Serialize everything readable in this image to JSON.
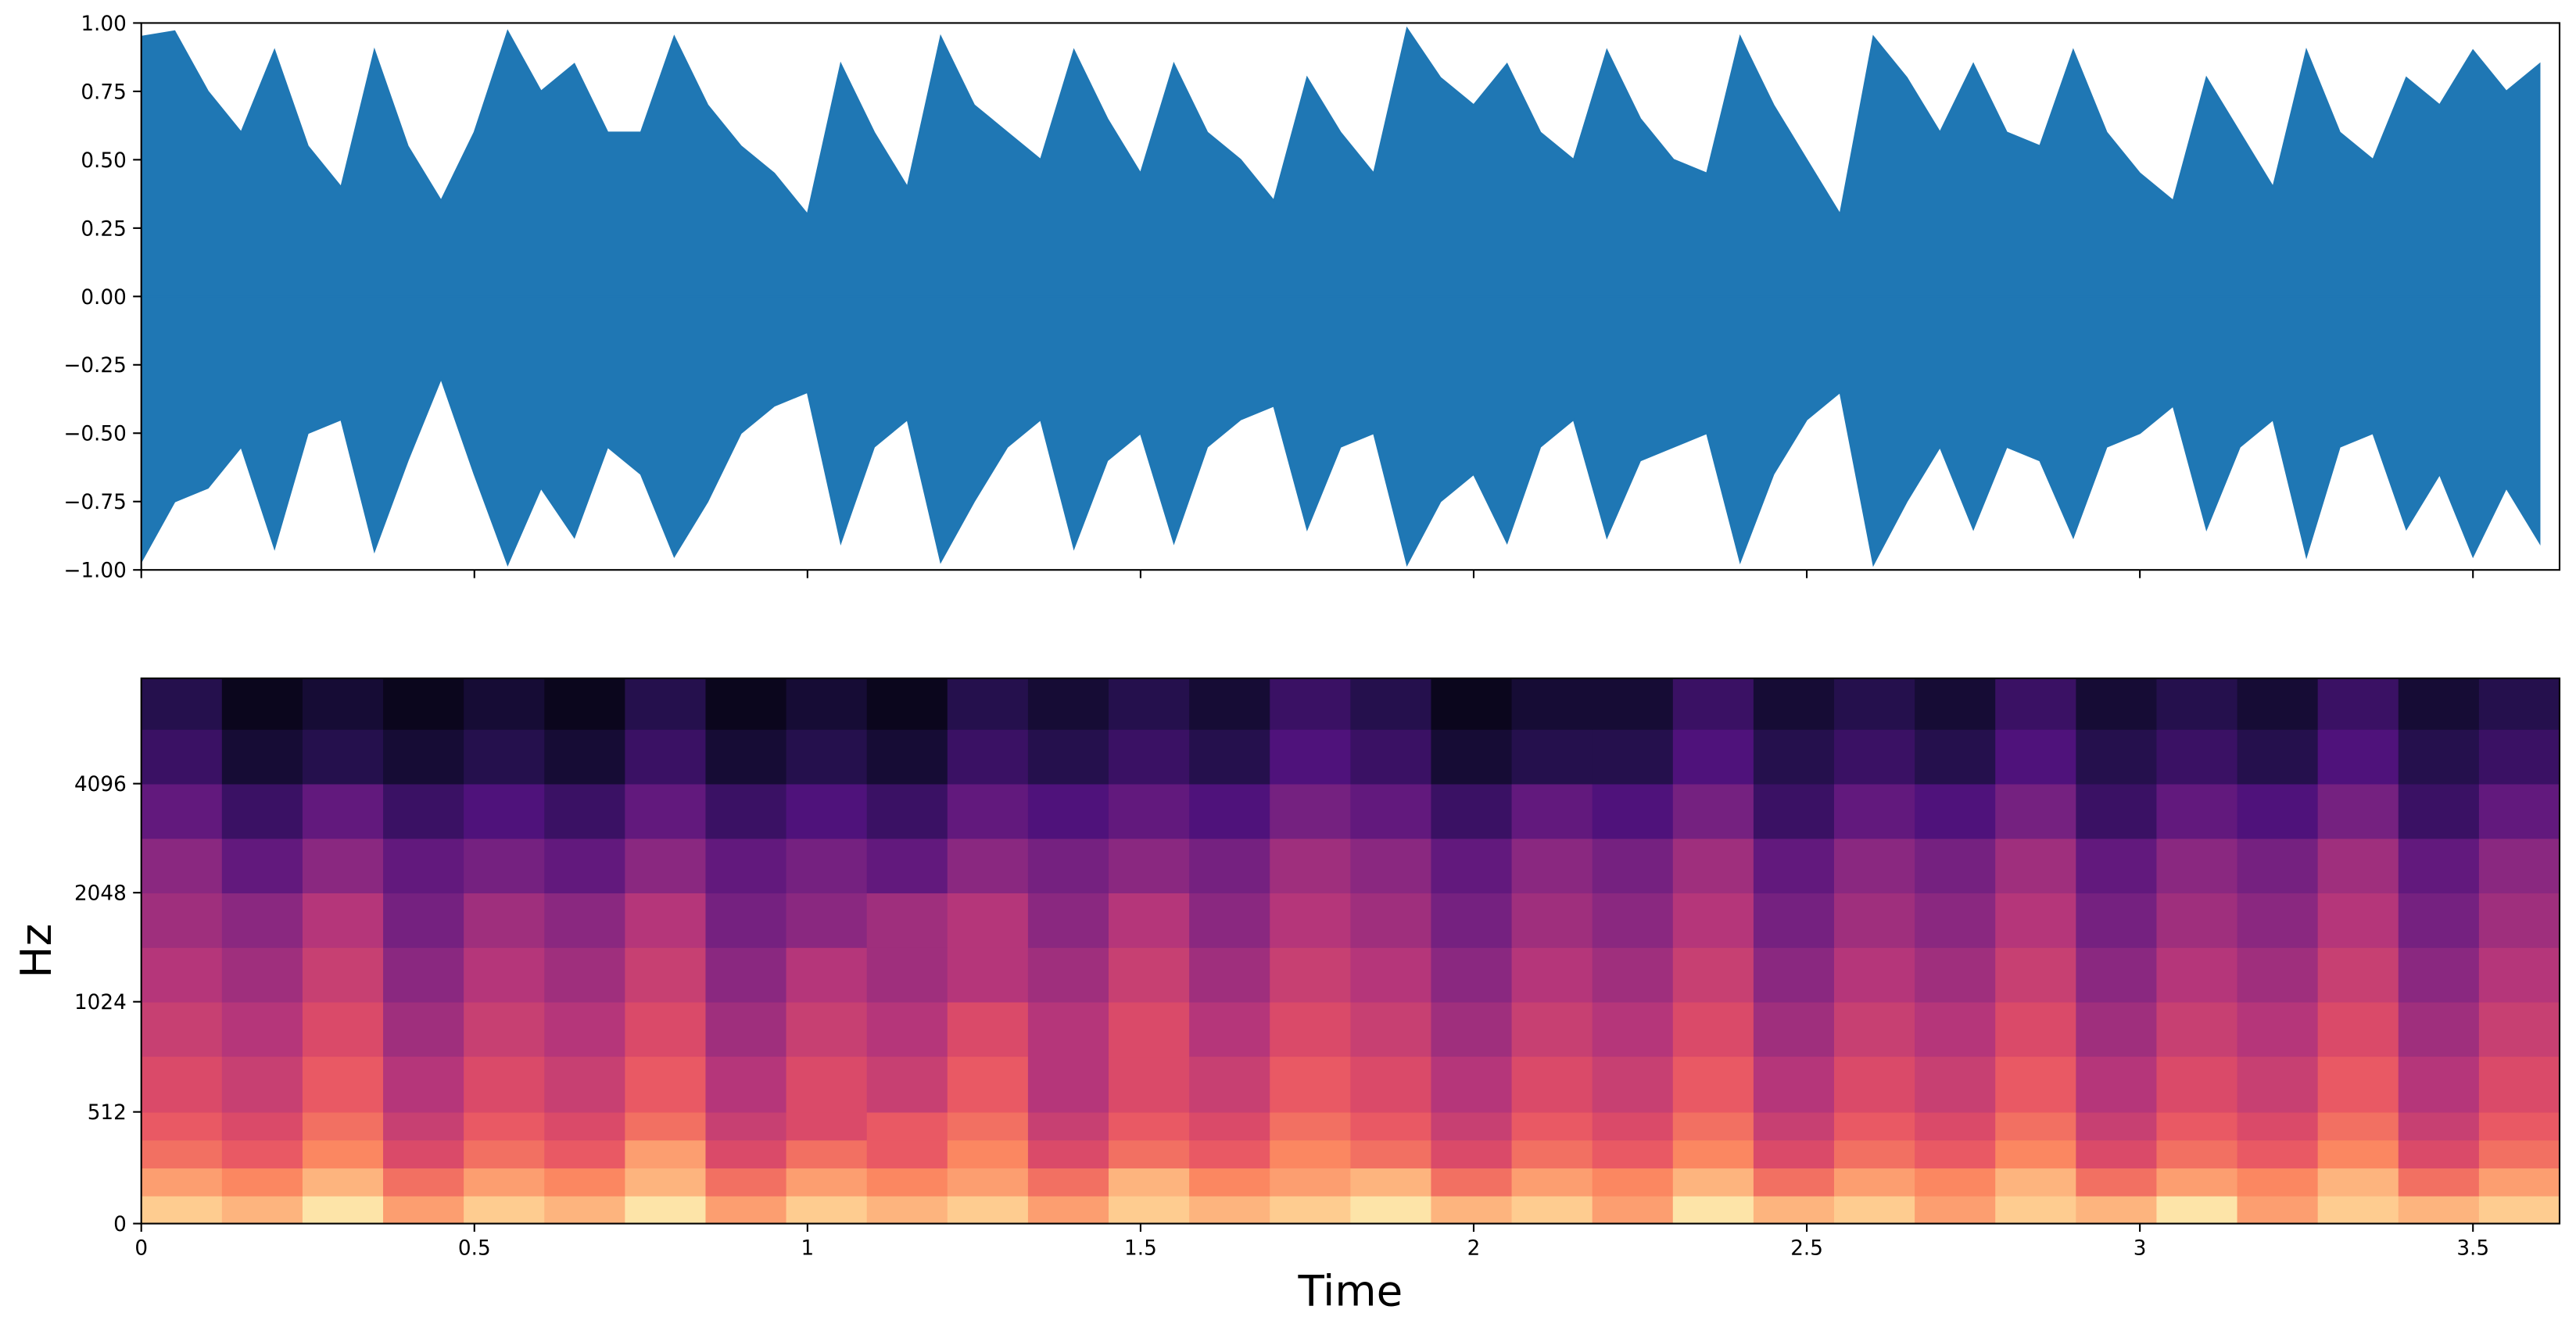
{
  "chart_data": [
    {
      "type": "area",
      "color": "#1f77b4",
      "x": [
        0,
        0.05,
        0.1,
        0.15,
        0.2,
        0.25,
        0.3,
        0.35,
        0.4,
        0.45,
        0.5,
        0.55,
        0.6,
        0.65,
        0.7,
        0.75,
        0.8,
        0.85,
        0.9,
        0.95,
        1.0,
        1.05,
        1.1,
        1.15,
        1.2,
        1.25,
        1.3,
        1.35,
        1.4,
        1.45,
        1.5,
        1.55,
        1.6,
        1.65,
        1.7,
        1.75,
        1.8,
        1.85,
        1.9,
        1.95,
        2.0,
        2.05,
        2.1,
        2.15,
        2.2,
        2.25,
        2.3,
        2.35,
        2.4,
        2.45,
        2.5,
        2.55,
        2.6,
        2.65,
        2.7,
        2.75,
        2.8,
        2.85,
        2.9,
        2.95,
        3.0,
        3.05,
        3.1,
        3.15,
        3.2,
        3.25,
        3.3,
        3.35,
        3.4,
        3.45,
        3.5,
        3.55,
        3.6
      ],
      "upper": [
        0.95,
        0.97,
        0.75,
        0.6,
        0.9,
        0.55,
        0.4,
        0.9,
        0.55,
        0.35,
        0.6,
        0.97,
        0.75,
        0.85,
        0.6,
        0.6,
        0.95,
        0.7,
        0.55,
        0.45,
        0.3,
        0.85,
        0.6,
        0.4,
        0.95,
        0.7,
        0.6,
        0.5,
        0.9,
        0.65,
        0.45,
        0.85,
        0.6,
        0.5,
        0.35,
        0.8,
        0.6,
        0.45,
        0.98,
        0.8,
        0.7,
        0.85,
        0.6,
        0.5,
        0.9,
        0.65,
        0.5,
        0.45,
        0.95,
        0.7,
        0.5,
        0.3,
        0.95,
        0.8,
        0.6,
        0.85,
        0.6,
        0.55,
        0.9,
        0.6,
        0.45,
        0.35,
        0.8,
        0.6,
        0.4,
        0.9,
        0.6,
        0.5,
        0.8,
        0.7,
        0.9,
        0.75,
        0.85
      ],
      "lower": [
        -0.97,
        -0.75,
        -0.7,
        -0.55,
        -0.92,
        -0.5,
        -0.45,
        -0.93,
        -0.6,
        -0.3,
        -0.65,
        -0.98,
        -0.7,
        -0.88,
        -0.55,
        -0.65,
        -0.95,
        -0.75,
        -0.5,
        -0.4,
        -0.35,
        -0.9,
        -0.55,
        -0.45,
        -0.97,
        -0.75,
        -0.55,
        -0.45,
        -0.92,
        -0.6,
        -0.5,
        -0.9,
        -0.55,
        -0.45,
        -0.4,
        -0.85,
        -0.55,
        -0.5,
        -0.98,
        -0.75,
        -0.65,
        -0.9,
        -0.55,
        -0.45,
        -0.88,
        -0.6,
        -0.55,
        -0.5,
        -0.97,
        -0.65,
        -0.45,
        -0.35,
        -0.98,
        -0.75,
        -0.55,
        -0.85,
        -0.55,
        -0.6,
        -0.88,
        -0.55,
        -0.5,
        -0.4,
        -0.85,
        -0.55,
        -0.45,
        -0.95,
        -0.55,
        -0.5,
        -0.85,
        -0.65,
        -0.95,
        -0.7,
        -0.9
      ],
      "xlim": [
        0,
        3.63
      ],
      "ylim": [
        -1,
        1
      ],
      "xticks": [
        0,
        0.5,
        1,
        1.5,
        2,
        2.5,
        3,
        3.5
      ],
      "xticklabels": false,
      "yticks": [
        {
          "value": -1,
          "label": "−1.00"
        },
        {
          "value": -0.75,
          "label": "−0.75"
        },
        {
          "value": -0.5,
          "label": "−0.50"
        },
        {
          "value": -0.25,
          "label": "−0.25"
        },
        {
          "value": 0,
          "label": "0.00"
        },
        {
          "value": 0.25,
          "label": "0.25"
        },
        {
          "value": 0.5,
          "label": "0.50"
        },
        {
          "value": 0.75,
          "label": "0.75"
        },
        {
          "value": 1,
          "label": "1.00"
        }
      ]
    },
    {
      "type": "heatmap",
      "colormap": "magma",
      "zlim": [
        0,
        1
      ],
      "xlabel": "Time",
      "ylabel": "Hz",
      "yscale": "symlog",
      "linthresh": 1000,
      "linscale": 1,
      "base": 2,
      "xlim": [
        0,
        3.63
      ],
      "ylim": [
        0,
        8000
      ],
      "xticks": [
        0,
        0.5,
        1,
        1.5,
        2,
        2.5,
        3,
        3.5
      ],
      "xticklabels": true,
      "yticks": [
        0,
        512,
        1024,
        2048,
        4096
      ],
      "x_edges": [
        0,
        0.121,
        0.242,
        0.363,
        0.484,
        0.605,
        0.726,
        0.847,
        0.968,
        1.089,
        1.21,
        1.331,
        1.452,
        1.573,
        1.694,
        1.815,
        1.936,
        2.057,
        2.178,
        2.299,
        2.42,
        2.541,
        2.662,
        2.783,
        2.904,
        3.025,
        3.146,
        3.267,
        3.388,
        3.509,
        3.63
      ],
      "y_edges": [
        0,
        128,
        256,
        384,
        512,
        768,
        1024,
        1448,
        2048,
        2896,
        4096,
        5793,
        8000
      ],
      "z": [
        [
          0.9,
          0.85,
          0.95,
          0.8,
          0.9,
          0.85,
          0.95,
          0.8,
          0.9,
          0.85,
          0.9,
          0.8,
          0.9,
          0.85,
          0.9,
          0.95,
          0.85,
          0.9,
          0.8,
          0.95,
          0.85,
          0.9,
          0.8,
          0.9,
          0.85,
          0.95,
          0.8,
          0.9,
          0.85,
          0.9
        ],
        [
          0.8,
          0.75,
          0.85,
          0.7,
          0.8,
          0.75,
          0.85,
          0.7,
          0.8,
          0.75,
          0.8,
          0.7,
          0.85,
          0.75,
          0.8,
          0.85,
          0.7,
          0.8,
          0.75,
          0.85,
          0.7,
          0.8,
          0.75,
          0.85,
          0.7,
          0.8,
          0.75,
          0.85,
          0.7,
          0.8
        ],
        [
          0.7,
          0.65,
          0.75,
          0.6,
          0.7,
          0.65,
          0.8,
          0.6,
          0.7,
          0.65,
          0.75,
          0.6,
          0.7,
          0.65,
          0.75,
          0.7,
          0.6,
          0.7,
          0.65,
          0.75,
          0.6,
          0.7,
          0.65,
          0.75,
          0.6,
          0.7,
          0.65,
          0.75,
          0.6,
          0.7
        ],
        [
          0.65,
          0.6,
          0.7,
          0.55,
          0.65,
          0.6,
          0.7,
          0.55,
          0.6,
          0.65,
          0.7,
          0.55,
          0.65,
          0.6,
          0.7,
          0.65,
          0.55,
          0.65,
          0.6,
          0.7,
          0.55,
          0.65,
          0.6,
          0.7,
          0.55,
          0.65,
          0.6,
          0.7,
          0.55,
          0.65
        ],
        [
          0.6,
          0.55,
          0.65,
          0.5,
          0.6,
          0.55,
          0.65,
          0.5,
          0.6,
          0.55,
          0.65,
          0.5,
          0.6,
          0.55,
          0.65,
          0.6,
          0.5,
          0.6,
          0.55,
          0.65,
          0.5,
          0.6,
          0.55,
          0.65,
          0.5,
          0.6,
          0.55,
          0.65,
          0.5,
          0.6
        ],
        [
          0.55,
          0.5,
          0.6,
          0.45,
          0.55,
          0.5,
          0.6,
          0.45,
          0.55,
          0.5,
          0.6,
          0.5,
          0.6,
          0.5,
          0.6,
          0.55,
          0.45,
          0.55,
          0.5,
          0.6,
          0.45,
          0.55,
          0.5,
          0.6,
          0.45,
          0.55,
          0.5,
          0.6,
          0.45,
          0.55
        ],
        [
          0.5,
          0.45,
          0.55,
          0.4,
          0.5,
          0.45,
          0.55,
          0.4,
          0.5,
          0.45,
          0.5,
          0.45,
          0.55,
          0.45,
          0.55,
          0.5,
          0.4,
          0.5,
          0.45,
          0.55,
          0.4,
          0.5,
          0.45,
          0.55,
          0.4,
          0.5,
          0.45,
          0.55,
          0.4,
          0.5
        ],
        [
          0.45,
          0.4,
          0.5,
          0.35,
          0.45,
          0.4,
          0.5,
          0.35,
          0.4,
          0.45,
          0.5,
          0.4,
          0.5,
          0.4,
          0.5,
          0.45,
          0.35,
          0.45,
          0.4,
          0.5,
          0.35,
          0.45,
          0.4,
          0.5,
          0.35,
          0.45,
          0.4,
          0.5,
          0.35,
          0.45
        ],
        [
          0.4,
          0.3,
          0.4,
          0.3,
          0.35,
          0.3,
          0.4,
          0.3,
          0.35,
          0.3,
          0.4,
          0.35,
          0.4,
          0.35,
          0.45,
          0.4,
          0.3,
          0.4,
          0.35,
          0.45,
          0.3,
          0.4,
          0.35,
          0.45,
          0.3,
          0.4,
          0.35,
          0.45,
          0.3,
          0.4
        ],
        [
          0.3,
          0.2,
          0.3,
          0.2,
          0.25,
          0.2,
          0.3,
          0.2,
          0.25,
          0.2,
          0.3,
          0.25,
          0.3,
          0.25,
          0.35,
          0.3,
          0.2,
          0.3,
          0.25,
          0.35,
          0.2,
          0.3,
          0.25,
          0.35,
          0.2,
          0.3,
          0.25,
          0.35,
          0.2,
          0.3
        ],
        [
          0.2,
          0.1,
          0.15,
          0.1,
          0.15,
          0.1,
          0.2,
          0.1,
          0.15,
          0.1,
          0.2,
          0.15,
          0.2,
          0.15,
          0.25,
          0.2,
          0.1,
          0.15,
          0.15,
          0.25,
          0.15,
          0.2,
          0.15,
          0.25,
          0.15,
          0.2,
          0.15,
          0.25,
          0.15,
          0.2
        ],
        [
          0.15,
          0.05,
          0.1,
          0.05,
          0.1,
          0.05,
          0.15,
          0.05,
          0.1,
          0.05,
          0.15,
          0.1,
          0.15,
          0.1,
          0.2,
          0.15,
          0.05,
          0.1,
          0.1,
          0.2,
          0.1,
          0.15,
          0.1,
          0.2,
          0.1,
          0.15,
          0.1,
          0.2,
          0.1,
          0.15
        ]
      ]
    }
  ]
}
